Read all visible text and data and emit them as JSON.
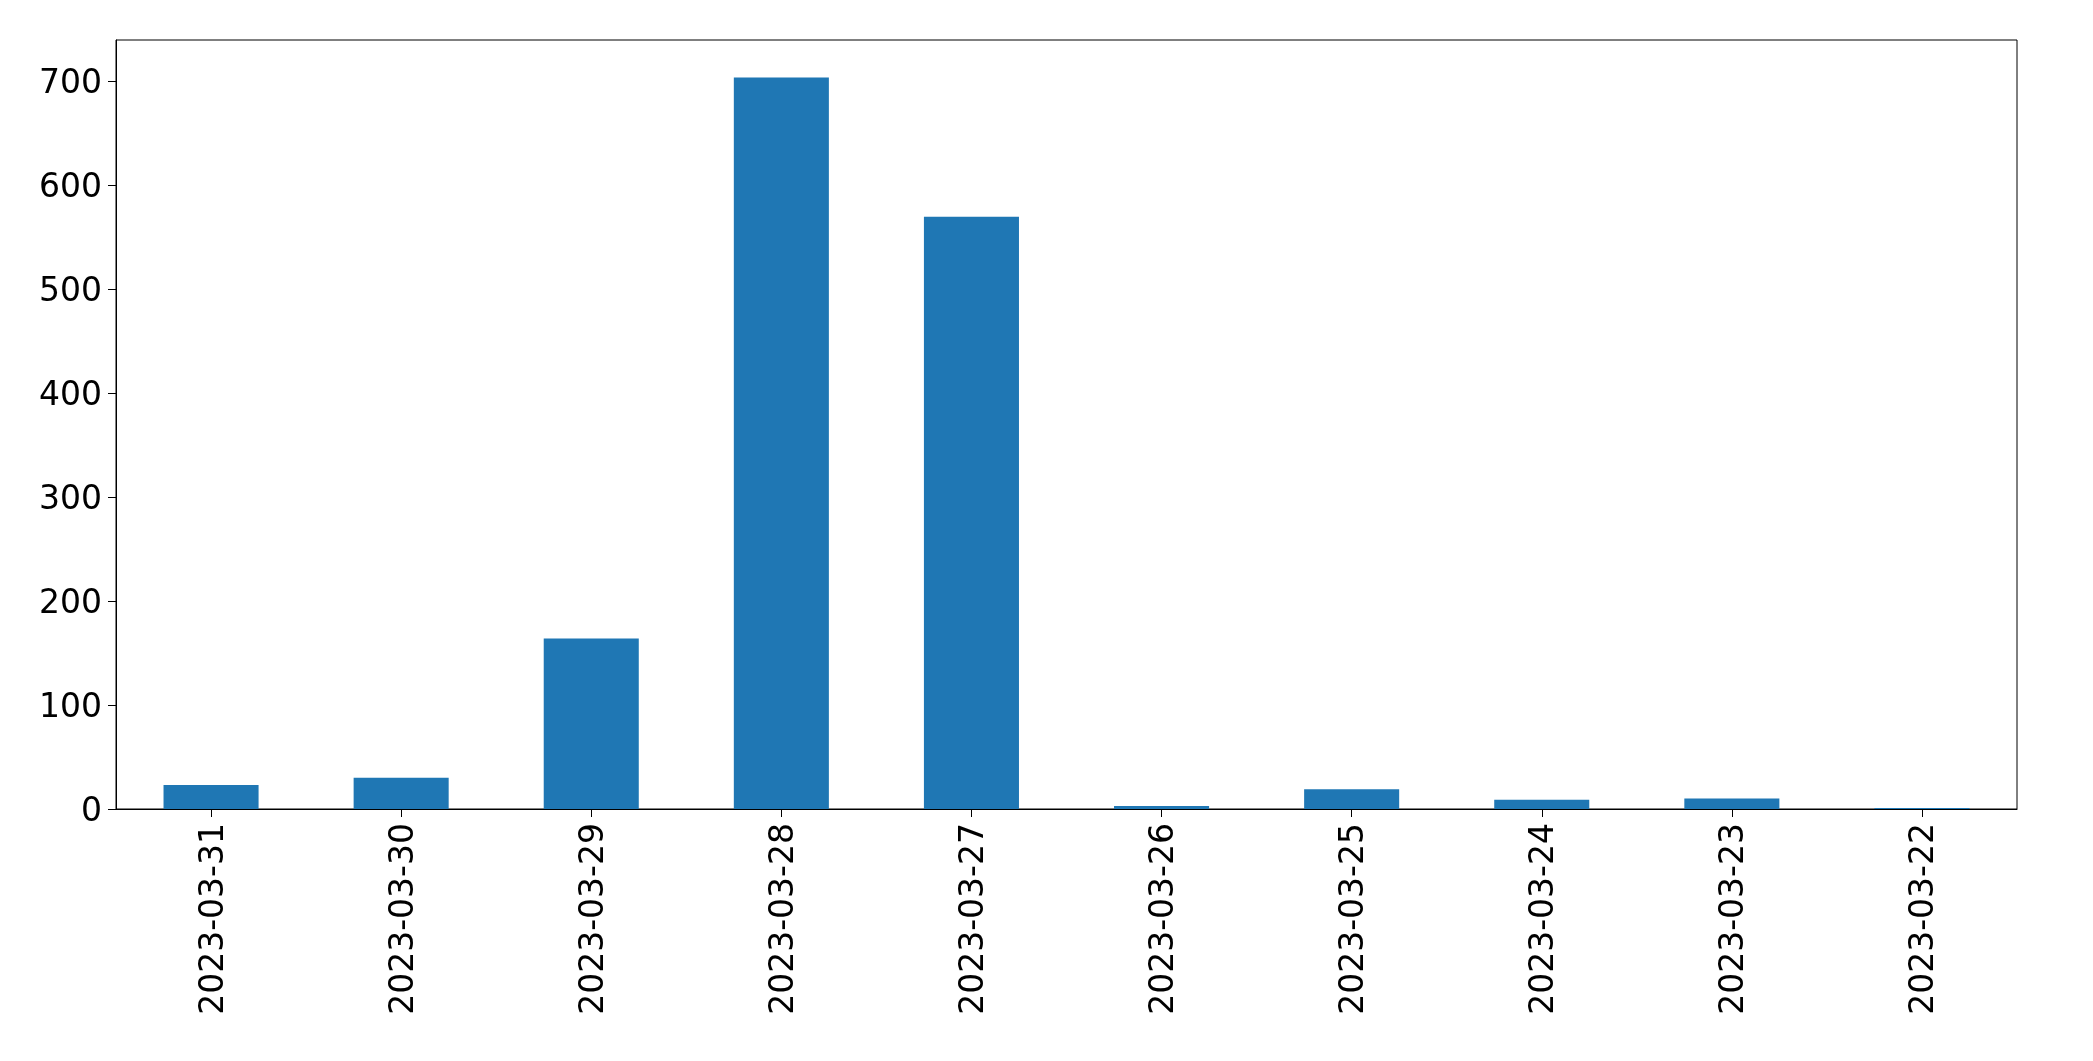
{
  "chart_data": {
    "type": "bar",
    "categories": [
      "2023-03-31",
      "2023-03-30",
      "2023-03-29",
      "2023-03-28",
      "2023-03-27",
      "2023-03-26",
      "2023-03-25",
      "2023-03-24",
      "2023-03-23",
      "2023-03-22"
    ],
    "values": [
      23,
      30,
      164,
      704,
      570,
      3,
      19,
      9,
      10,
      1
    ],
    "color": "#1f77b4",
    "ylim": [
      0,
      740
    ],
    "yticks": [
      0,
      100,
      200,
      300,
      400,
      500,
      600,
      700
    ],
    "grid": false
  }
}
